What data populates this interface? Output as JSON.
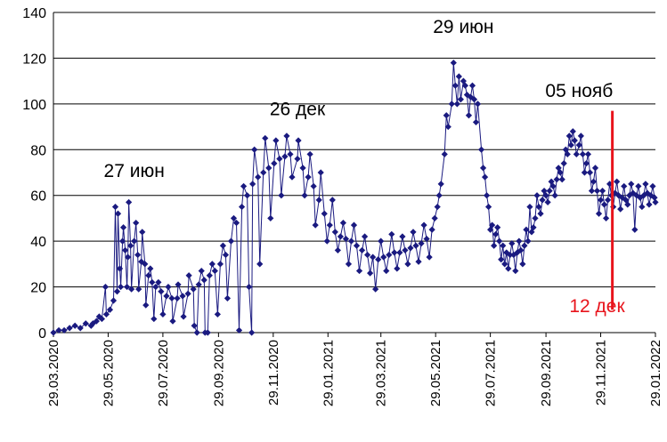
{
  "chart_data": {
    "type": "scatter",
    "title": "",
    "xlabel": "",
    "ylabel": "",
    "ylim": [
      0,
      140
    ],
    "y_ticks": [
      "0",
      "20",
      "40",
      "60",
      "80",
      "100",
      "120",
      "140"
    ],
    "xlim": [
      "2020-03-29",
      "2022-01-29"
    ],
    "x_ticks": [
      "29.03.2020",
      "29.05.2020",
      "29.07.2020",
      "29.09.2020",
      "29.11.2020",
      "29.01.2021",
      "29.03.2021",
      "29.05.2021",
      "29.07.2021",
      "29.09.2021",
      "29.11.2021",
      "29.01.2022"
    ],
    "grid": "horizontal",
    "marker_color": "#1a1a80",
    "line_color": "#1a1a80",
    "marker": "diamond",
    "annotations": [
      {
        "text": "27 июн",
        "date": "2020-06-27",
        "y": 68,
        "color": "#000000"
      },
      {
        "text": "26 дек",
        "date": "2020-12-26",
        "y": 95,
        "color": "#000000"
      },
      {
        "text": "29 июн",
        "date": "2021-06-29",
        "y": 131,
        "color": "#000000"
      },
      {
        "text": "05 нояб",
        "date": "2021-11-05",
        "y": 103,
        "color": "#000000"
      },
      {
        "text": "12 дек",
        "date": "2021-11-25",
        "y": 9,
        "color": "#e8141c"
      }
    ],
    "vline": {
      "date": "2021-12-12",
      "y_from": 10,
      "y_to": 97,
      "color": "#e8141c"
    },
    "series": [
      {
        "points": [
          [
            "2020-03-29",
            0
          ],
          [
            "2020-04-04",
            1
          ],
          [
            "2020-04-10",
            1
          ],
          [
            "2020-04-16",
            2
          ],
          [
            "2020-04-22",
            3
          ],
          [
            "2020-04-28",
            2
          ],
          [
            "2020-05-04",
            4
          ],
          [
            "2020-05-10",
            3
          ],
          [
            "2020-05-16",
            5
          ],
          [
            "2020-05-22",
            6
          ],
          [
            "2020-05-27",
            8
          ],
          [
            "2020-05-31",
            10
          ],
          [
            "2020-06-04",
            14
          ],
          [
            "2020-06-08",
            18
          ],
          [
            "2020-06-11",
            28
          ],
          [
            "2020-06-14",
            40
          ],
          [
            "2020-06-17",
            36
          ],
          [
            "2020-06-20",
            33
          ],
          [
            "2020-06-23",
            38
          ],
          [
            "2020-06-27",
            40
          ],
          [
            "2020-07-01",
            34
          ],
          [
            "2020-07-05",
            31
          ],
          [
            "2020-07-09",
            30
          ],
          [
            "2020-07-13",
            25
          ],
          [
            "2020-07-17",
            22
          ],
          [
            "2020-07-21",
            20
          ],
          [
            "2020-07-27",
            18
          ],
          [
            "2020-08-02",
            16
          ],
          [
            "2020-08-08",
            15
          ],
          [
            "2020-08-14",
            15
          ],
          [
            "2020-08-20",
            16
          ],
          [
            "2020-08-26",
            17
          ],
          [
            "2020-09-01",
            19
          ],
          [
            "2020-09-07",
            21
          ],
          [
            "2020-09-13",
            23
          ],
          [
            "2020-09-19",
            25
          ],
          [
            "2020-09-25",
            27
          ],
          [
            "2020-10-01",
            30
          ],
          [
            "2020-10-07",
            34
          ],
          [
            "2020-10-13",
            40
          ],
          [
            "2020-10-19",
            48
          ],
          [
            "2020-10-25",
            55
          ],
          [
            "2020-10-31",
            60
          ],
          [
            "2020-11-06",
            65
          ],
          [
            "2020-11-12",
            68
          ],
          [
            "2020-11-18",
            70
          ],
          [
            "2020-11-24",
            72
          ],
          [
            "2020-11-30",
            74
          ],
          [
            "2020-12-06",
            76
          ],
          [
            "2020-12-12",
            77
          ],
          [
            "2020-12-18",
            78
          ],
          [
            "2020-12-26",
            76
          ],
          [
            "2021-01-01",
            72
          ],
          [
            "2021-01-07",
            68
          ],
          [
            "2021-01-13",
            64
          ],
          [
            "2021-01-19",
            58
          ],
          [
            "2021-01-25",
            52
          ],
          [
            "2021-01-31",
            47
          ],
          [
            "2021-02-06",
            44
          ],
          [
            "2021-02-12",
            42
          ],
          [
            "2021-02-18",
            41
          ],
          [
            "2021-02-24",
            40
          ],
          [
            "2021-03-02",
            38
          ],
          [
            "2021-03-08",
            36
          ],
          [
            "2021-03-14",
            34
          ],
          [
            "2021-03-20",
            33
          ],
          [
            "2021-03-26",
            32
          ],
          [
            "2021-04-01",
            33
          ],
          [
            "2021-04-07",
            34
          ],
          [
            "2021-04-13",
            35
          ],
          [
            "2021-04-19",
            35
          ],
          [
            "2021-04-25",
            36
          ],
          [
            "2021-05-01",
            37
          ],
          [
            "2021-05-07",
            38
          ],
          [
            "2021-05-13",
            39
          ],
          [
            "2021-05-19",
            41
          ],
          [
            "2021-05-25",
            45
          ],
          [
            "2021-05-31",
            55
          ],
          [
            "2021-06-04",
            65
          ],
          [
            "2021-06-08",
            78
          ],
          [
            "2021-06-12",
            90
          ],
          [
            "2021-06-16",
            100
          ],
          [
            "2021-06-20",
            108
          ],
          [
            "2021-06-24",
            112
          ],
          [
            "2021-06-29",
            110
          ],
          [
            "2021-07-03",
            104
          ],
          [
            "2021-07-07",
            103
          ],
          [
            "2021-07-11",
            102
          ],
          [
            "2021-07-15",
            100
          ],
          [
            "2021-07-19",
            80
          ],
          [
            "2021-07-23",
            68
          ],
          [
            "2021-07-27",
            55
          ],
          [
            "2021-07-31",
            47
          ],
          [
            "2021-08-04",
            43
          ],
          [
            "2021-08-08",
            40
          ],
          [
            "2021-08-12",
            38
          ],
          [
            "2021-08-16",
            35
          ],
          [
            "2021-08-20",
            34
          ],
          [
            "2021-08-24",
            34
          ],
          [
            "2021-08-28",
            35
          ],
          [
            "2021-09-01",
            36
          ],
          [
            "2021-09-05",
            38
          ],
          [
            "2021-09-09",
            40
          ],
          [
            "2021-09-13",
            44
          ],
          [
            "2021-09-17",
            50
          ],
          [
            "2021-09-21",
            55
          ],
          [
            "2021-09-25",
            58
          ],
          [
            "2021-09-29",
            60
          ],
          [
            "2021-10-03",
            62
          ],
          [
            "2021-10-07",
            64
          ],
          [
            "2021-10-11",
            67
          ],
          [
            "2021-10-15",
            70
          ],
          [
            "2021-10-19",
            74
          ],
          [
            "2021-10-23",
            78
          ],
          [
            "2021-10-27",
            82
          ],
          [
            "2021-10-31",
            84
          ],
          [
            "2021-11-05",
            82
          ],
          [
            "2021-11-09",
            78
          ],
          [
            "2021-11-13",
            74
          ],
          [
            "2021-11-17",
            70
          ],
          [
            "2021-11-21",
            66
          ],
          [
            "2021-11-25",
            62
          ],
          [
            "2021-11-29",
            58
          ],
          [
            "2021-12-03",
            56
          ],
          [
            "2021-12-07",
            58
          ],
          [
            "2021-12-11",
            60
          ],
          [
            "2021-12-15",
            61
          ],
          [
            "2021-12-19",
            60
          ],
          [
            "2021-12-23",
            59
          ],
          [
            "2021-12-27",
            58
          ],
          [
            "2021-12-31",
            60
          ],
          [
            "2022-01-04",
            61
          ],
          [
            "2022-01-08",
            60
          ],
          [
            "2022-01-12",
            59
          ],
          [
            "2022-01-16",
            60
          ],
          [
            "2022-01-20",
            61
          ],
          [
            "2022-01-24",
            60
          ],
          [
            "2022-01-28",
            59
          ]
        ],
        "outliers": [
          [
            "2020-05-12",
            4
          ],
          [
            "2020-05-19",
            7
          ],
          [
            "2020-05-26",
            20
          ],
          [
            "2020-06-06",
            55
          ],
          [
            "2020-06-09",
            52
          ],
          [
            "2020-06-12",
            20
          ],
          [
            "2020-06-15",
            46
          ],
          [
            "2020-06-19",
            20
          ],
          [
            "2020-06-21",
            57
          ],
          [
            "2020-06-24",
            19
          ],
          [
            "2020-06-29",
            48
          ],
          [
            "2020-07-02",
            19
          ],
          [
            "2020-07-06",
            44
          ],
          [
            "2020-07-10",
            12
          ],
          [
            "2020-07-15",
            28
          ],
          [
            "2020-07-19",
            6
          ],
          [
            "2020-07-24",
            22
          ],
          [
            "2020-07-29",
            8
          ],
          [
            "2020-08-04",
            20
          ],
          [
            "2020-08-09",
            5
          ],
          [
            "2020-08-15",
            21
          ],
          [
            "2020-08-21",
            7
          ],
          [
            "2020-08-27",
            25
          ],
          [
            "2020-09-02",
            3
          ],
          [
            "2020-09-05",
            0
          ],
          [
            "2020-09-10",
            27
          ],
          [
            "2020-09-14",
            0
          ],
          [
            "2020-09-17",
            0
          ],
          [
            "2020-09-22",
            30
          ],
          [
            "2020-09-28",
            8
          ],
          [
            "2020-10-04",
            38
          ],
          [
            "2020-10-09",
            15
          ],
          [
            "2020-10-16",
            50
          ],
          [
            "2020-10-22",
            1
          ],
          [
            "2020-10-27",
            64
          ],
          [
            "2020-11-02",
            20
          ],
          [
            "2020-11-05",
            0
          ],
          [
            "2020-11-08",
            80
          ],
          [
            "2020-11-14",
            30
          ],
          [
            "2020-11-20",
            85
          ],
          [
            "2020-11-26",
            50
          ],
          [
            "2020-12-02",
            84
          ],
          [
            "2020-12-08",
            60
          ],
          [
            "2020-12-14",
            86
          ],
          [
            "2020-12-20",
            68
          ],
          [
            "2020-12-27",
            84
          ],
          [
            "2021-01-03",
            60
          ],
          [
            "2021-01-09",
            78
          ],
          [
            "2021-01-15",
            47
          ],
          [
            "2021-01-21",
            70
          ],
          [
            "2021-01-28",
            40
          ],
          [
            "2021-02-03",
            58
          ],
          [
            "2021-02-09",
            36
          ],
          [
            "2021-02-15",
            48
          ],
          [
            "2021-02-21",
            30
          ],
          [
            "2021-02-27",
            47
          ],
          [
            "2021-03-05",
            27
          ],
          [
            "2021-03-11",
            42
          ],
          [
            "2021-03-17",
            26
          ],
          [
            "2021-03-23",
            19
          ],
          [
            "2021-03-29",
            40
          ],
          [
            "2021-04-04",
            27
          ],
          [
            "2021-04-10",
            43
          ],
          [
            "2021-04-16",
            28
          ],
          [
            "2021-04-22",
            42
          ],
          [
            "2021-04-28",
            30
          ],
          [
            "2021-05-04",
            44
          ],
          [
            "2021-05-10",
            31
          ],
          [
            "2021-05-16",
            47
          ],
          [
            "2021-05-22",
            33
          ],
          [
            "2021-05-28",
            50
          ],
          [
            "2021-06-02",
            60
          ],
          [
            "2021-06-10",
            95
          ],
          [
            "2021-06-18",
            118
          ],
          [
            "2021-06-22",
            100
          ],
          [
            "2021-06-26",
            102
          ],
          [
            "2021-07-01",
            108
          ],
          [
            "2021-07-05",
            95
          ],
          [
            "2021-07-09",
            108
          ],
          [
            "2021-07-13",
            92
          ],
          [
            "2021-07-21",
            72
          ],
          [
            "2021-07-25",
            60
          ],
          [
            "2021-07-29",
            45
          ],
          [
            "2021-08-02",
            38
          ],
          [
            "2021-08-06",
            46
          ],
          [
            "2021-08-10",
            32
          ],
          [
            "2021-08-14",
            30
          ],
          [
            "2021-08-18",
            28
          ],
          [
            "2021-08-22",
            39
          ],
          [
            "2021-08-26",
            27
          ],
          [
            "2021-08-30",
            40
          ],
          [
            "2021-09-03",
            30
          ],
          [
            "2021-09-07",
            45
          ],
          [
            "2021-09-11",
            55
          ],
          [
            "2021-09-15",
            46
          ],
          [
            "2021-09-19",
            60
          ],
          [
            "2021-09-23",
            52
          ],
          [
            "2021-09-27",
            62
          ],
          [
            "2021-10-01",
            57
          ],
          [
            "2021-10-05",
            66
          ],
          [
            "2021-10-09",
            60
          ],
          [
            "2021-10-13",
            72
          ],
          [
            "2021-10-17",
            67
          ],
          [
            "2021-10-21",
            80
          ],
          [
            "2021-10-25",
            86
          ],
          [
            "2021-10-29",
            88
          ],
          [
            "2021-11-02",
            78
          ],
          [
            "2021-11-07",
            86
          ],
          [
            "2021-11-11",
            70
          ],
          [
            "2021-11-15",
            78
          ],
          [
            "2021-11-19",
            62
          ],
          [
            "2021-11-23",
            72
          ],
          [
            "2021-11-27",
            52
          ],
          [
            "2021-12-01",
            62
          ],
          [
            "2021-12-05",
            50
          ],
          [
            "2021-12-09",
            65
          ],
          [
            "2021-12-13",
            55
          ],
          [
            "2021-12-17",
            66
          ],
          [
            "2021-12-21",
            54
          ],
          [
            "2021-12-25",
            64
          ],
          [
            "2021-12-29",
            56
          ],
          [
            "2022-01-02",
            65
          ],
          [
            "2022-01-06",
            45
          ],
          [
            "2022-01-10",
            64
          ],
          [
            "2022-01-14",
            55
          ],
          [
            "2022-01-18",
            65
          ],
          [
            "2022-01-22",
            56
          ],
          [
            "2022-01-26",
            64
          ],
          [
            "2022-01-29",
            57
          ]
        ]
      }
    ]
  }
}
